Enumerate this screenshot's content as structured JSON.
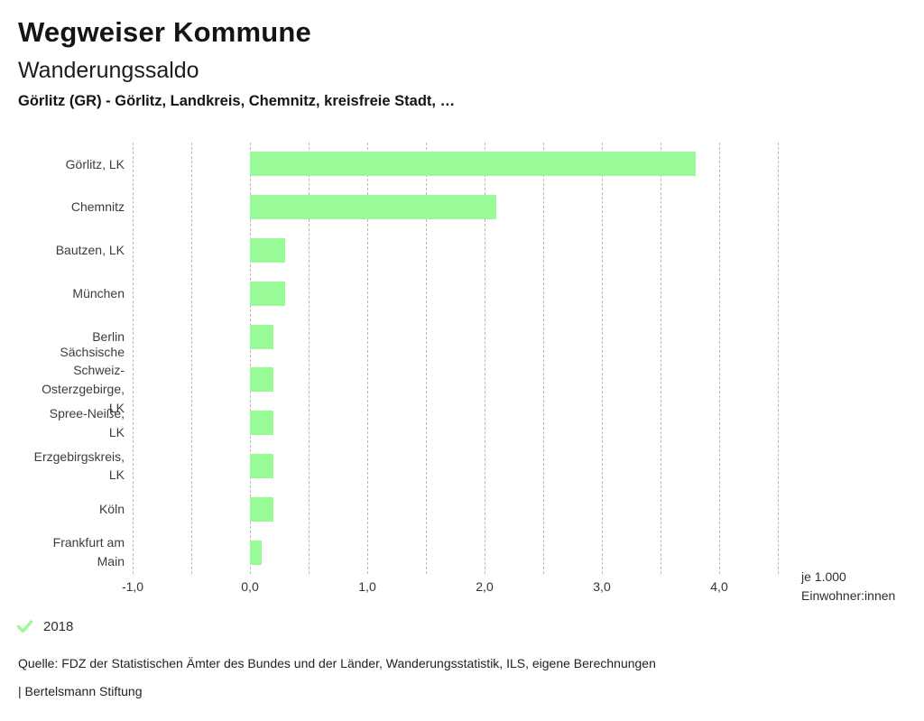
{
  "header": {
    "app_title": "Wegweiser Kommune",
    "chart_title": "Wanderungssaldo",
    "subtitle": "Görlitz (GR) - Görlitz, Landkreis, Chemnitz, kreisfreie Stadt, …"
  },
  "chart_data": {
    "type": "bar",
    "orientation": "horizontal",
    "title": "Wanderungssaldo",
    "unit_label_lines": [
      "je 1.000",
      "Einwohner:innen"
    ],
    "xlim": [
      -1.0,
      4.5
    ],
    "gridline_step": 0.5,
    "grid": true,
    "bar_color": "#98FB98",
    "gridline_color": "#b9b9b9",
    "x_ticks": [
      {
        "value": -1.0,
        "label": "-1,0"
      },
      {
        "value": 0.0,
        "label": "0,0"
      },
      {
        "value": 1.0,
        "label": "1,0"
      },
      {
        "value": 2.0,
        "label": "2,0"
      },
      {
        "value": 3.0,
        "label": "3,0"
      },
      {
        "value": 4.0,
        "label": "4,0"
      }
    ],
    "categories": [
      "Görlitz, LK",
      "Chemnitz",
      "Bautzen, LK",
      "München",
      "Berlin",
      "Sächsische Schweiz-Osterzgebirge, LK",
      "Spree-Neiße, LK",
      "Erzgebirgskreis, LK",
      "Köln",
      "Frankfurt am Main"
    ],
    "category_label_lines": [
      [
        "Görlitz, LK"
      ],
      [
        "Chemnitz"
      ],
      [
        "Bautzen, LK"
      ],
      [
        "München"
      ],
      [
        "Berlin"
      ],
      [
        "Sächsische",
        "Schweiz-",
        "Osterzgebirge,",
        "LK"
      ],
      [
        "Spree-Neiße,",
        "LK"
      ],
      [
        "Erzgebirgskreis,",
        "LK"
      ],
      [
        "Köln"
      ],
      [
        "Frankfurt am",
        "Main"
      ]
    ],
    "series": [
      {
        "name": "2018",
        "values": [
          3.8,
          2.1,
          0.3,
          0.3,
          0.2,
          0.2,
          0.2,
          0.2,
          0.2,
          0.1
        ]
      }
    ]
  },
  "legend": {
    "items": [
      {
        "label": "2018",
        "selected": true,
        "check_color": "#98FB98"
      }
    ]
  },
  "footer": {
    "source": "Quelle: FDZ der Statistischen Ämter des Bundes und der Länder, Wanderungsstatistik, ILS, eigene Berechnungen",
    "attribution": "| Bertelsmann Stiftung"
  }
}
